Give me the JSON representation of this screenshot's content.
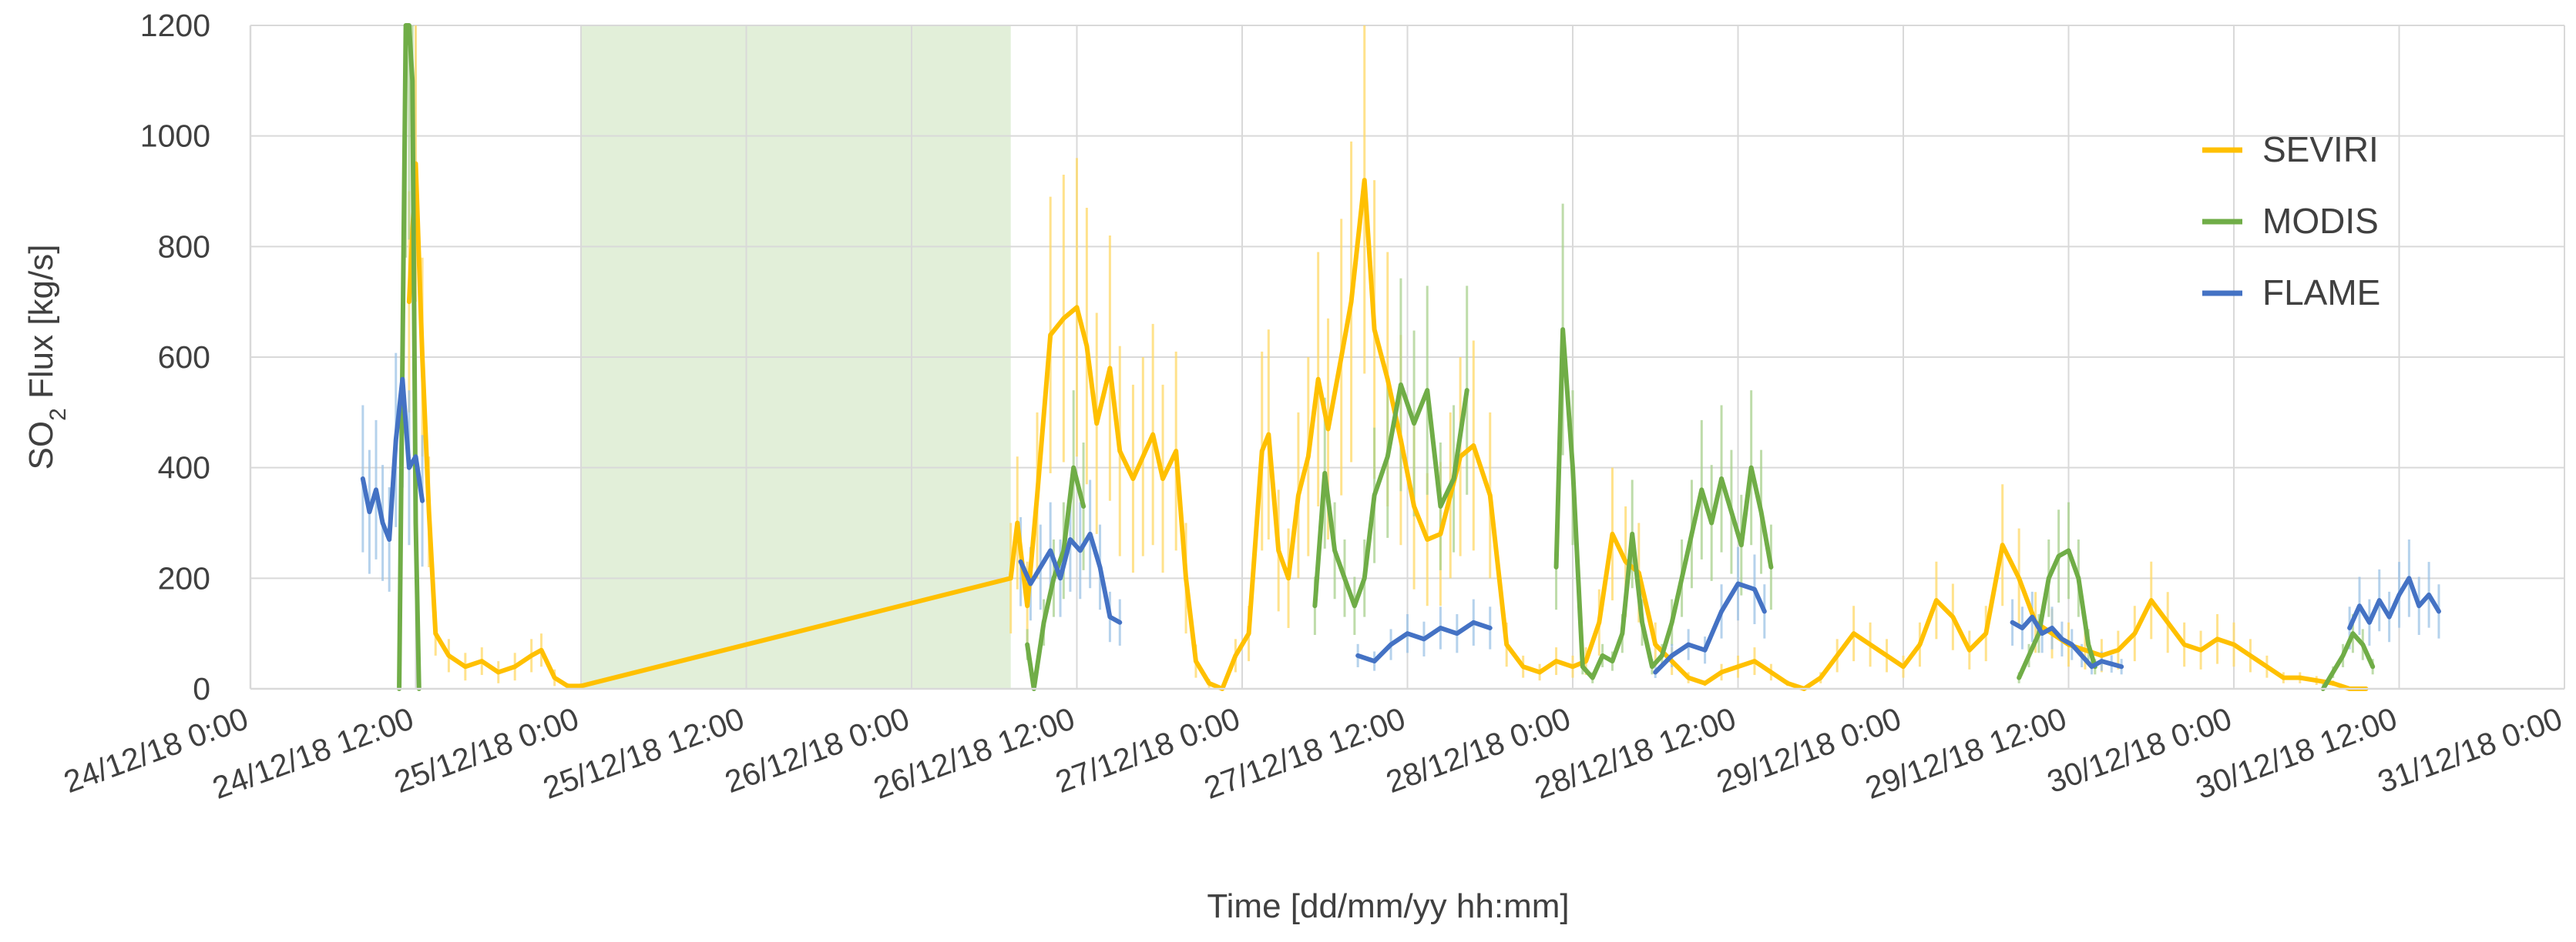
{
  "chart_data": {
    "type": "line",
    "title": "",
    "xlabel": "Time [dd/mm/yy hh:mm]",
    "ylabel_main": "SO",
    "ylabel_sub": "2",
    "ylabel_rest": " Flux [kg/s]",
    "ylim": [
      0,
      1200
    ],
    "yticks": [
      0,
      200,
      400,
      600,
      800,
      1000,
      1200
    ],
    "xlim": [
      0,
      7
    ],
    "x_unit": "days since 24/12/18 0:00",
    "xtick_labels": [
      "24/12/18 0:00",
      "24/12/18 12:00",
      "25/12/18 0:00",
      "25/12/18 12:00",
      "26/12/18 0:00",
      "26/12/18 12:00",
      "27/12/18 0:00",
      "27/12/18 12:00",
      "28/12/18 0:00",
      "28/12/18 12:00",
      "29/12/18 0:00",
      "29/12/18 12:00",
      "30/12/18 0:00",
      "30/12/18 12:00",
      "31/12/18 0:00"
    ],
    "grid": true,
    "legend_position": "top-right",
    "shaded_region": {
      "x": [
        1.0,
        2.3
      ],
      "color": "#e2efd9"
    },
    "series": [
      {
        "name": "SEVIRI",
        "color": "#ffc000",
        "error_color": "#ffd966",
        "x": [
          0.48,
          0.5,
          0.52,
          0.54,
          0.56,
          0.6,
          0.65,
          0.7,
          0.75,
          0.8,
          0.85,
          0.88,
          0.92,
          0.96,
          1.0,
          2.3,
          2.32,
          2.35,
          2.38,
          2.42,
          2.46,
          2.5,
          2.53,
          2.56,
          2.6,
          2.63,
          2.67,
          2.7,
          2.73,
          2.76,
          2.8,
          2.83,
          2.86,
          2.9,
          2.94,
          2.98,
          3.02,
          3.06,
          3.08,
          3.11,
          3.14,
          3.17,
          3.2,
          3.23,
          3.26,
          3.3,
          3.33,
          3.37,
          3.4,
          3.44,
          3.48,
          3.52,
          3.56,
          3.6,
          3.63,
          3.66,
          3.7,
          3.75,
          3.8,
          3.85,
          3.9,
          3.95,
          4.0,
          4.04,
          4.08,
          4.12,
          4.16,
          4.2,
          4.25,
          4.3,
          4.35,
          4.4,
          4.45,
          4.5,
          4.55,
          4.6,
          4.65,
          4.7,
          4.75,
          4.8,
          4.85,
          4.9,
          4.95,
          5.0,
          5.05,
          5.1,
          5.15,
          5.2,
          5.25,
          5.3,
          5.35,
          5.4,
          5.45,
          5.5,
          5.55,
          5.6,
          5.65,
          5.7,
          5.75,
          5.8,
          5.85,
          5.9,
          5.95,
          6.0,
          6.05,
          6.1,
          6.15,
          6.2,
          6.25,
          6.3,
          6.35,
          6.4
        ],
        "y": [
          700,
          950,
          600,
          320,
          100,
          60,
          40,
          50,
          30,
          40,
          60,
          70,
          20,
          5,
          5,
          200,
          300,
          150,
          350,
          640,
          670,
          690,
          620,
          480,
          580,
          430,
          380,
          420,
          460,
          380,
          430,
          200,
          50,
          10,
          0,
          60,
          100,
          430,
          460,
          250,
          200,
          350,
          420,
          560,
          470,
          600,
          700,
          920,
          650,
          560,
          450,
          330,
          270,
          280,
          350,
          420,
          440,
          350,
          80,
          40,
          30,
          50,
          40,
          50,
          120,
          280,
          230,
          210,
          80,
          50,
          20,
          10,
          30,
          40,
          50,
          30,
          10,
          0,
          20,
          60,
          100,
          80,
          60,
          40,
          80,
          160,
          130,
          70,
          100,
          260,
          200,
          120,
          100,
          80,
          70,
          60,
          70,
          100,
          160,
          120,
          80,
          70,
          90,
          80,
          60,
          40,
          20,
          20,
          15,
          10,
          0,
          0
        ],
        "errors": [
          200,
          250,
          180,
          100,
          40,
          30,
          25,
          25,
          20,
          25,
          30,
          30,
          15,
          5,
          5,
          100,
          120,
          80,
          150,
          250,
          260,
          270,
          250,
          200,
          240,
          190,
          170,
          180,
          200,
          170,
          180,
          100,
          30,
          8,
          0,
          30,
          50,
          180,
          190,
          110,
          90,
          150,
          180,
          230,
          200,
          250,
          290,
          350,
          270,
          230,
          190,
          150,
          120,
          130,
          150,
          180,
          190,
          150,
          40,
          20,
          15,
          25,
          20,
          25,
          60,
          120,
          100,
          90,
          40,
          25,
          10,
          5,
          15,
          20,
          25,
          15,
          5,
          0,
          10,
          30,
          50,
          40,
          30,
          20,
          40,
          70,
          60,
          35,
          50,
          110,
          90,
          55,
          45,
          40,
          35,
          30,
          35,
          50,
          70,
          55,
          40,
          35,
          45,
          40,
          30,
          20,
          10,
          10,
          8,
          5,
          0,
          0
        ]
      },
      {
        "name": "MODIS",
        "color": "#70ad47",
        "error_color": "#a9d18e",
        "segments": [
          {
            "x": [
              0.45,
              0.47,
              0.48,
              0.49,
              0.5,
              0.51
            ],
            "y": [
              0,
              1200,
              1250,
              1100,
              300,
              0
            ]
          },
          {
            "x": [
              2.35,
              2.37,
              2.4,
              2.43,
              2.46,
              2.49,
              2.52
            ],
            "y": [
              80,
              0,
              120,
              200,
              250,
              400,
              330
            ]
          },
          {
            "x": [
              3.22,
              3.25,
              3.28,
              3.31,
              3.34,
              3.37,
              3.4,
              3.44,
              3.48,
              3.52,
              3.56,
              3.6,
              3.64,
              3.68
            ],
            "y": [
              150,
              390,
              250,
              200,
              150,
              200,
              350,
              420,
              550,
              480,
              540,
              330,
              380,
              540
            ]
          },
          {
            "x": [
              3.95,
              3.97,
              4.0,
              4.03,
              4.06,
              4.09,
              4.12,
              4.15,
              4.18,
              4.21,
              4.24,
              4.27,
              4.3,
              4.33,
              4.36,
              4.39,
              4.42,
              4.45,
              4.48,
              4.51,
              4.54,
              4.57,
              4.6
            ],
            "y": [
              220,
              650,
              400,
              40,
              20,
              60,
              50,
              100,
              280,
              120,
              40,
              60,
              120,
              200,
              280,
              360,
              300,
              380,
              320,
              260,
              400,
              320,
              220
            ]
          },
          {
            "x": [
              5.35,
              5.38,
              5.41,
              5.44,
              5.47,
              5.5,
              5.53,
              5.56,
              5.58
            ],
            "y": [
              20,
              60,
              100,
              200,
              240,
              250,
              200,
              80,
              40
            ]
          },
          {
            "x": [
              6.27,
              6.3,
              6.33,
              6.36,
              6.39,
              6.42
            ],
            "y": [
              0,
              30,
              60,
              100,
              80,
              40
            ]
          }
        ]
      },
      {
        "name": "FLAME",
        "color": "#4472c4",
        "error_color": "#9dc3e6",
        "segments": [
          {
            "x": [
              0.34,
              0.36,
              0.38,
              0.4,
              0.42,
              0.44,
              0.46,
              0.48,
              0.5,
              0.52
            ],
            "y": [
              380,
              320,
              360,
              300,
              270,
              450,
              560,
              400,
              420,
              340
            ]
          },
          {
            "x": [
              2.33,
              2.36,
              2.39,
              2.42,
              2.45,
              2.48,
              2.51,
              2.54,
              2.57,
              2.6,
              2.63
            ],
            "y": [
              230,
              190,
              220,
              250,
              200,
              270,
              250,
              280,
              220,
              130,
              120
            ]
          },
          {
            "x": [
              3.35,
              3.4,
              3.45,
              3.5,
              3.55,
              3.6,
              3.65,
              3.7,
              3.75
            ],
            "y": [
              60,
              50,
              80,
              100,
              90,
              110,
              100,
              120,
              110
            ]
          },
          {
            "x": [
              4.25,
              4.3,
              4.35,
              4.4,
              4.45,
              4.5,
              4.55,
              4.58
            ],
            "y": [
              30,
              60,
              80,
              70,
              140,
              190,
              180,
              140
            ]
          },
          {
            "x": [
              5.33,
              5.36,
              5.39,
              5.42,
              5.45,
              5.48,
              5.51,
              5.54,
              5.57,
              5.6,
              5.63,
              5.66
            ],
            "y": [
              120,
              110,
              130,
              100,
              110,
              90,
              80,
              60,
              40,
              50,
              45,
              40
            ]
          },
          {
            "x": [
              6.35,
              6.38,
              6.41,
              6.44,
              6.47,
              6.5,
              6.53,
              6.56,
              6.59,
              6.62
            ],
            "y": [
              110,
              150,
              120,
              160,
              130,
              170,
              200,
              150,
              170,
              140
            ]
          }
        ]
      }
    ]
  }
}
